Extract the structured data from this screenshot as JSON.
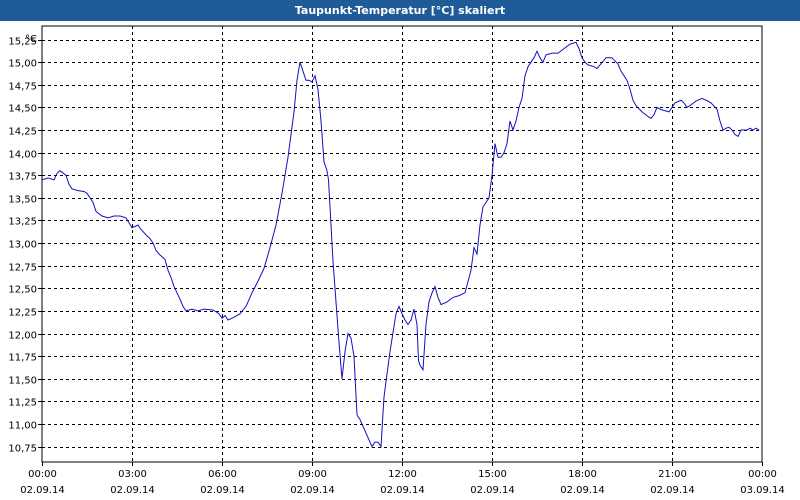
{
  "window": {
    "title": "Taupunkt-Temperatur [°C] skaliert"
  },
  "colors": {
    "titlebar": "#1f5b97",
    "line": "#1010c0",
    "grid": "#000000"
  },
  "chart_data": {
    "type": "line",
    "title": "Taupunkt-Temperatur [°C] skaliert",
    "ylabel": "°C",
    "ylim": [
      10.5,
      15.4
    ],
    "y_ticks": [
      "15,25",
      "15,00",
      "14,75",
      "14,50",
      "14,25",
      "14,00",
      "13,75",
      "13,50",
      "13,25",
      "13,00",
      "12,75",
      "12,50",
      "12,25",
      "12,00",
      "11,75",
      "11,50",
      "11,25",
      "11,00",
      "10,75"
    ],
    "y_tick_values": [
      15.25,
      15.0,
      14.75,
      14.5,
      14.25,
      14.0,
      13.75,
      13.5,
      13.25,
      13.0,
      12.75,
      12.5,
      12.25,
      12.0,
      11.75,
      11.5,
      11.25,
      11.0,
      10.75
    ],
    "x_ticks": [
      {
        "time": "00:00",
        "date": "02.09.14",
        "h": 0
      },
      {
        "time": "03:00",
        "date": "02.09.14",
        "h": 3
      },
      {
        "time": "06:00",
        "date": "02.09.14",
        "h": 6
      },
      {
        "time": "09:00",
        "date": "02.09.14",
        "h": 9
      },
      {
        "time": "12:00",
        "date": "02.09.14",
        "h": 12
      },
      {
        "time": "15:00",
        "date": "02.09.14",
        "h": 15
      },
      {
        "time": "18:00",
        "date": "02.09.14",
        "h": 18
      },
      {
        "time": "21:00",
        "date": "02.09.14",
        "h": 21
      },
      {
        "time": "00:00",
        "date": "03.09.14",
        "h": 24
      }
    ],
    "grid": true,
    "series": [
      {
        "points": [
          [
            0.0,
            13.7
          ],
          [
            0.2,
            13.72
          ],
          [
            0.4,
            13.7
          ],
          [
            0.5,
            13.77
          ],
          [
            0.6,
            13.8
          ],
          [
            0.8,
            13.75
          ],
          [
            0.9,
            13.65
          ],
          [
            1.0,
            13.6
          ],
          [
            1.2,
            13.58
          ],
          [
            1.4,
            13.57
          ],
          [
            1.5,
            13.55
          ],
          [
            1.7,
            13.45
          ],
          [
            1.8,
            13.35
          ],
          [
            2.0,
            13.3
          ],
          [
            2.2,
            13.28
          ],
          [
            2.4,
            13.3
          ],
          [
            2.6,
            13.3
          ],
          [
            2.8,
            13.28
          ],
          [
            3.0,
            13.17
          ],
          [
            3.2,
            13.2
          ],
          [
            3.3,
            13.15
          ],
          [
            3.5,
            13.08
          ],
          [
            3.6,
            13.05
          ],
          [
            3.7,
            13.0
          ],
          [
            3.8,
            12.92
          ],
          [
            3.9,
            12.88
          ],
          [
            4.1,
            12.82
          ],
          [
            4.2,
            12.7
          ],
          [
            4.3,
            12.62
          ],
          [
            4.4,
            12.52
          ],
          [
            4.5,
            12.45
          ],
          [
            4.6,
            12.38
          ],
          [
            4.7,
            12.3
          ],
          [
            4.8,
            12.25
          ],
          [
            5.0,
            12.27
          ],
          [
            5.2,
            12.25
          ],
          [
            5.4,
            12.27
          ],
          [
            5.7,
            12.26
          ],
          [
            5.9,
            12.22
          ],
          [
            6.0,
            12.17
          ],
          [
            6.1,
            12.2
          ],
          [
            6.2,
            12.15
          ],
          [
            6.4,
            12.18
          ],
          [
            6.6,
            12.22
          ],
          [
            6.8,
            12.3
          ],
          [
            7.0,
            12.45
          ],
          [
            7.2,
            12.58
          ],
          [
            7.4,
            12.72
          ],
          [
            7.6,
            12.95
          ],
          [
            7.8,
            13.2
          ],
          [
            8.0,
            13.55
          ],
          [
            8.2,
            13.95
          ],
          [
            8.4,
            14.45
          ],
          [
            8.5,
            14.8
          ],
          [
            8.6,
            15.0
          ],
          [
            8.7,
            14.9
          ],
          [
            8.8,
            14.8
          ],
          [
            8.9,
            14.8
          ],
          [
            9.0,
            14.78
          ],
          [
            9.1,
            14.85
          ],
          [
            9.2,
            14.7
          ],
          [
            9.3,
            14.35
          ],
          [
            9.4,
            13.9
          ],
          [
            9.5,
            13.8
          ],
          [
            9.55,
            13.7
          ],
          [
            9.7,
            12.8
          ],
          [
            9.9,
            11.9
          ],
          [
            10.0,
            11.5
          ],
          [
            10.1,
            11.8
          ],
          [
            10.2,
            12.0
          ],
          [
            10.3,
            11.95
          ],
          [
            10.4,
            11.75
          ],
          [
            10.5,
            11.1
          ],
          [
            10.6,
            11.05
          ],
          [
            10.8,
            10.9
          ],
          [
            11.0,
            10.75
          ],
          [
            11.1,
            10.8
          ],
          [
            11.2,
            10.8
          ],
          [
            11.3,
            10.75
          ],
          [
            11.4,
            11.3
          ],
          [
            11.6,
            11.8
          ],
          [
            11.8,
            12.22
          ],
          [
            11.9,
            12.3
          ],
          [
            12.0,
            12.22
          ],
          [
            12.1,
            12.15
          ],
          [
            12.2,
            12.1
          ],
          [
            12.3,
            12.15
          ],
          [
            12.4,
            12.27
          ],
          [
            12.5,
            12.1
          ],
          [
            12.55,
            11.7
          ],
          [
            12.6,
            11.65
          ],
          [
            12.7,
            11.6
          ],
          [
            12.8,
            12.1
          ],
          [
            12.9,
            12.35
          ],
          [
            13.0,
            12.45
          ],
          [
            13.1,
            12.52
          ],
          [
            13.2,
            12.4
          ],
          [
            13.3,
            12.32
          ],
          [
            13.5,
            12.35
          ],
          [
            13.7,
            12.4
          ],
          [
            13.9,
            12.42
          ],
          [
            14.1,
            12.45
          ],
          [
            14.3,
            12.7
          ],
          [
            14.4,
            12.95
          ],
          [
            14.5,
            12.88
          ],
          [
            14.6,
            13.2
          ],
          [
            14.7,
            13.4
          ],
          [
            14.8,
            13.45
          ],
          [
            14.9,
            13.5
          ],
          [
            15.0,
            13.75
          ],
          [
            15.1,
            14.1
          ],
          [
            15.2,
            13.95
          ],
          [
            15.3,
            13.95
          ],
          [
            15.4,
            14.0
          ],
          [
            15.5,
            14.1
          ],
          [
            15.6,
            14.35
          ],
          [
            15.7,
            14.25
          ],
          [
            15.8,
            14.35
          ],
          [
            15.9,
            14.5
          ],
          [
            16.0,
            14.6
          ],
          [
            16.1,
            14.85
          ],
          [
            16.2,
            14.95
          ],
          [
            16.3,
            15.0
          ],
          [
            16.4,
            15.05
          ],
          [
            16.5,
            15.12
          ],
          [
            16.6,
            15.05
          ],
          [
            16.7,
            15.0
          ],
          [
            16.8,
            15.08
          ],
          [
            17.0,
            15.1
          ],
          [
            17.2,
            15.1
          ],
          [
            17.4,
            15.15
          ],
          [
            17.6,
            15.2
          ],
          [
            17.8,
            15.22
          ],
          [
            17.9,
            15.15
          ],
          [
            18.0,
            15.05
          ],
          [
            18.1,
            15.0
          ],
          [
            18.2,
            14.97
          ],
          [
            18.4,
            14.95
          ],
          [
            18.5,
            14.93
          ],
          [
            18.6,
            14.97
          ],
          [
            18.8,
            15.05
          ],
          [
            19.0,
            15.05
          ],
          [
            19.2,
            14.98
          ],
          [
            19.3,
            14.9
          ],
          [
            19.5,
            14.8
          ],
          [
            19.6,
            14.7
          ],
          [
            19.7,
            14.58
          ],
          [
            19.8,
            14.52
          ],
          [
            20.0,
            14.45
          ],
          [
            20.2,
            14.4
          ],
          [
            20.3,
            14.38
          ],
          [
            20.4,
            14.42
          ],
          [
            20.5,
            14.5
          ],
          [
            20.6,
            14.48
          ],
          [
            20.7,
            14.47
          ],
          [
            20.9,
            14.45
          ],
          [
            21.0,
            14.5
          ],
          [
            21.1,
            14.55
          ],
          [
            21.3,
            14.58
          ],
          [
            21.4,
            14.55
          ],
          [
            21.5,
            14.5
          ],
          [
            21.6,
            14.52
          ],
          [
            21.8,
            14.57
          ],
          [
            22.0,
            14.6
          ],
          [
            22.2,
            14.57
          ],
          [
            22.3,
            14.55
          ],
          [
            22.5,
            14.48
          ],
          [
            22.6,
            14.35
          ],
          [
            22.7,
            14.25
          ],
          [
            22.8,
            14.27
          ],
          [
            22.9,
            14.28
          ],
          [
            23.0,
            14.25
          ],
          [
            23.1,
            14.2
          ],
          [
            23.2,
            14.18
          ],
          [
            23.3,
            14.25
          ],
          [
            23.4,
            14.25
          ],
          [
            23.5,
            14.25
          ],
          [
            23.6,
            14.27
          ],
          [
            23.7,
            14.25
          ],
          [
            23.8,
            14.27
          ],
          [
            23.9,
            14.25
          ]
        ]
      }
    ]
  }
}
